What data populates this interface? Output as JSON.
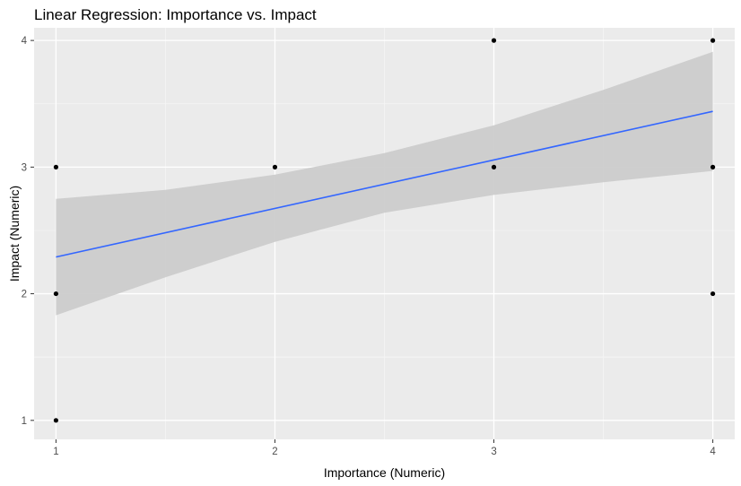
{
  "chart_data": {
    "type": "scatter",
    "title": "Linear Regression: Importance vs. Impact",
    "xlabel": "Importance (Numeric)",
    "ylabel": "Impact (Numeric)",
    "xlim": [
      0.9,
      4.1
    ],
    "ylim": [
      0.85,
      4.1
    ],
    "x_ticks": [
      1,
      2,
      3,
      4
    ],
    "y_ticks": [
      1,
      2,
      3,
      4
    ],
    "x_tick_labels": [
      "1",
      "2",
      "3",
      "4"
    ],
    "y_tick_labels": [
      "1",
      "2",
      "3",
      "4"
    ],
    "grid": true,
    "legend": "none",
    "points": [
      {
        "x": 1,
        "y": 1
      },
      {
        "x": 1,
        "y": 2
      },
      {
        "x": 1,
        "y": 3
      },
      {
        "x": 2,
        "y": 3
      },
      {
        "x": 3,
        "y": 3
      },
      {
        "x": 3,
        "y": 4
      },
      {
        "x": 4,
        "y": 2
      },
      {
        "x": 4,
        "y": 3
      },
      {
        "x": 4,
        "y": 4
      }
    ],
    "regression": {
      "x": [
        1,
        4
      ],
      "y": [
        2.29,
        3.44
      ]
    },
    "confidence_band": {
      "x": [
        1,
        1.5,
        2,
        2.5,
        3,
        3.5,
        4
      ],
      "lower": [
        1.83,
        2.13,
        2.41,
        2.64,
        2.78,
        2.88,
        2.97
      ],
      "upper": [
        2.75,
        2.82,
        2.94,
        3.11,
        3.33,
        3.61,
        3.91
      ]
    },
    "colors": {
      "panel_background": "#ebebeb",
      "grid_major": "#ffffff",
      "grid_minor": "#f5f5f5",
      "band": "#cccccc",
      "line": "#3366ff",
      "point": "#000000",
      "tick_text": "#4d4d4d",
      "tick_mark": "#333333"
    }
  }
}
